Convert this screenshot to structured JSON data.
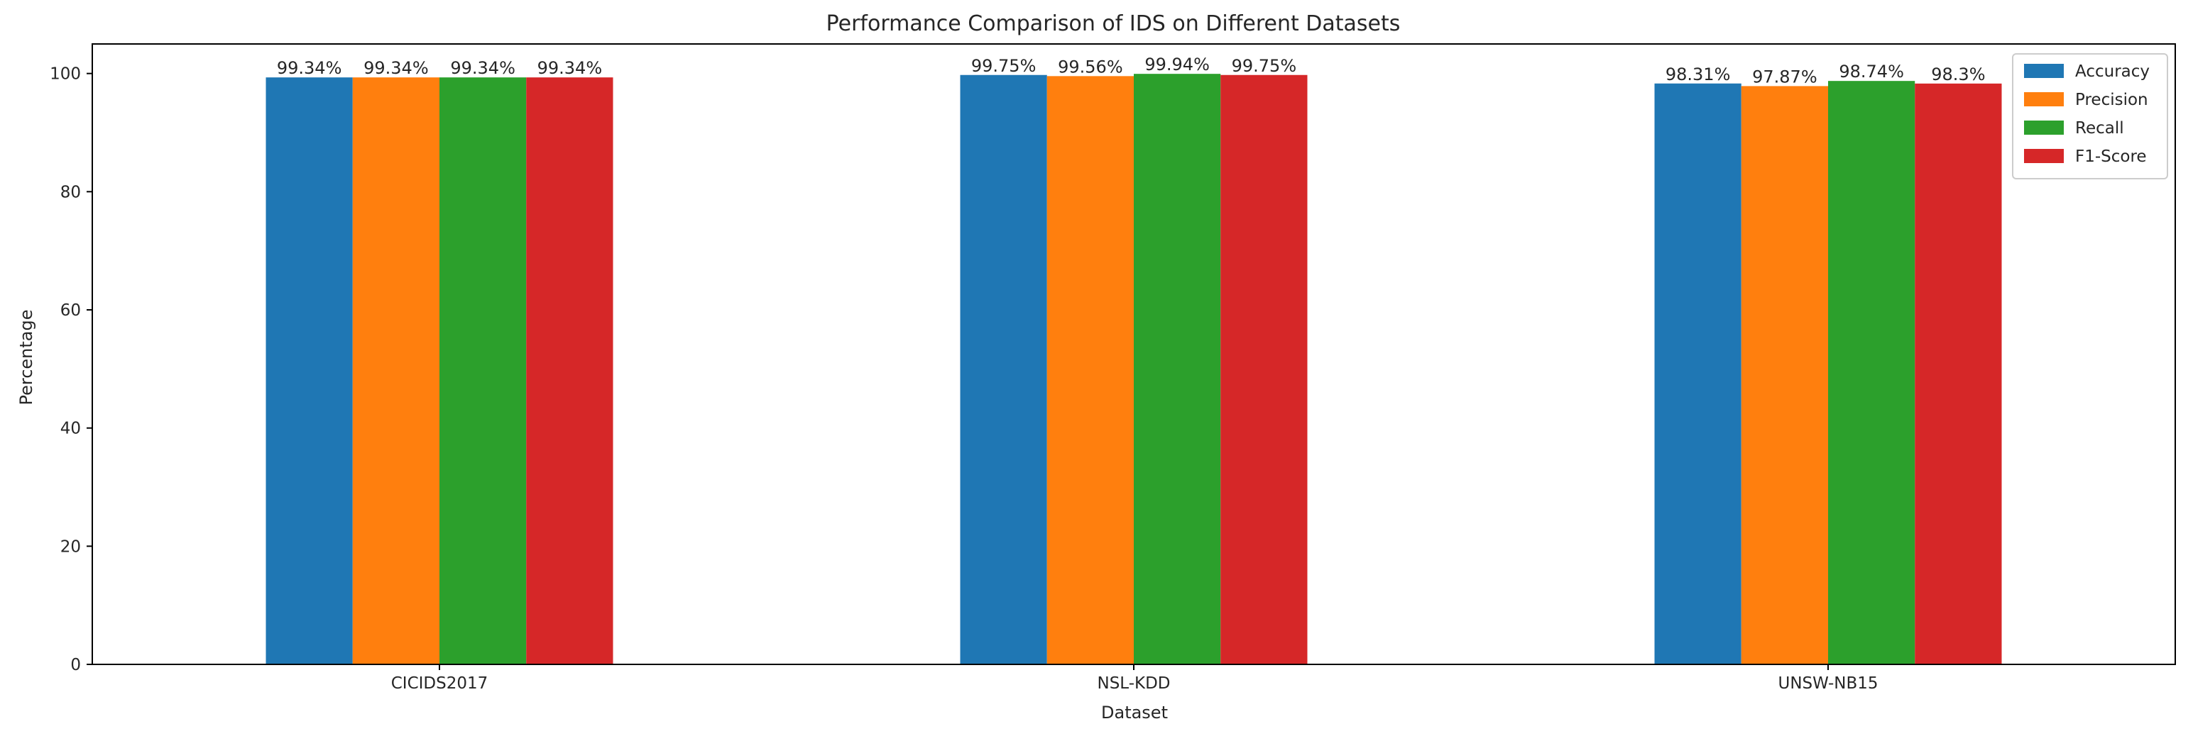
{
  "chart_data": {
    "type": "bar",
    "title": "Performance Comparison of IDS on Different Datasets",
    "xlabel": "Dataset",
    "ylabel": "Percentage",
    "categories": [
      "CICIDS2017",
      "NSL-KDD",
      "UNSW-NB15"
    ],
    "ylim": [
      0,
      105
    ],
    "yticks": [
      0,
      20,
      40,
      60,
      80,
      100
    ],
    "grid": false,
    "legend_position": "top-right",
    "series": [
      {
        "name": "Accuracy",
        "color": "#1f77b4",
        "values": [
          99.34,
          99.75,
          98.31
        ],
        "labels": [
          "99.34%",
          "99.75%",
          "98.31%"
        ]
      },
      {
        "name": "Precision",
        "color": "#ff7f0e",
        "values": [
          99.34,
          99.56,
          97.87
        ],
        "labels": [
          "99.34%",
          "99.56%",
          "97.87%"
        ]
      },
      {
        "name": "Recall",
        "color": "#2ca02c",
        "values": [
          99.34,
          99.94,
          98.74
        ],
        "labels": [
          "99.34%",
          "99.94%",
          "98.74%"
        ]
      },
      {
        "name": "F1-Score",
        "color": "#d62728",
        "values": [
          99.34,
          99.75,
          98.3
        ],
        "labels": [
          "99.34%",
          "99.75%",
          "98.3%"
        ]
      }
    ]
  }
}
